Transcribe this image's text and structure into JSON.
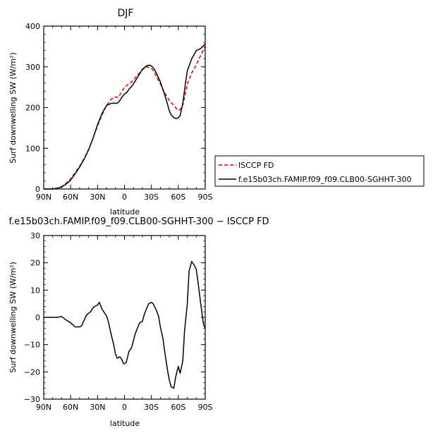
{
  "chart_data": [
    {
      "type": "line",
      "title": "DJF",
      "xlabel": "latitude",
      "ylabel": "Surf downwelling SW (W/m²)",
      "xlim": [
        -90,
        90
      ],
      "ylim": [
        0,
        400
      ],
      "x_ticks": [
        -90,
        -60,
        -30,
        0,
        30,
        60,
        90
      ],
      "x_tick_labels": [
        "90N",
        "60N",
        "30N",
        "0",
        "30S",
        "60S",
        "90S"
      ],
      "y_ticks": [
        0,
        100,
        200,
        300,
        400
      ],
      "y_tick_labels": [
        "0",
        "100",
        "200",
        "300",
        "400"
      ],
      "legend_position": "right",
      "series": [
        {
          "name": "ISCCP FD",
          "color": "#dd0000",
          "dash": "dashed",
          "x": [
            -90,
            -80,
            -75,
            -70,
            -65,
            -60,
            -55,
            -50,
            -45,
            -40,
            -35,
            -30,
            -25,
            -20,
            -15,
            -12,
            -10,
            -7,
            -5,
            -2,
            0,
            3,
            5,
            8,
            10,
            15,
            20,
            25,
            30,
            33,
            35,
            40,
            45,
            50,
            55,
            58,
            60,
            62,
            65,
            68,
            70,
            75,
            80,
            85,
            90
          ],
          "values": [
            0,
            0,
            2,
            6,
            14,
            25,
            40,
            56,
            75,
            97,
            125,
            155,
            182,
            205,
            220,
            225,
            226,
            225,
            232,
            243,
            250,
            255,
            258,
            263,
            268,
            281,
            293,
            300,
            296,
            288,
            278,
            258,
            235,
            217,
            205,
            197,
            193,
            195,
            206,
            235,
            258,
            285,
            305,
            328,
            352
          ]
        },
        {
          "name": "f.e15b03ch.FAMIP.f09_f09.CLB00-SGHHT-300",
          "color": "#000000",
          "dash": "solid",
          "x": [
            -90,
            -80,
            -75,
            -70,
            -65,
            -60,
            -55,
            -50,
            -45,
            -40,
            -35,
            -30,
            -25,
            -20,
            -15,
            -12,
            -10,
            -7,
            -5,
            -2,
            0,
            3,
            5,
            8,
            10,
            15,
            20,
            25,
            28,
            30,
            33,
            35,
            40,
            45,
            48,
            50,
            52,
            55,
            58,
            60,
            62,
            65,
            68,
            70,
            75,
            80,
            85,
            90
          ],
          "values": [
            0,
            0,
            2,
            5,
            12,
            22,
            37,
            54,
            73,
            96,
            125,
            158,
            186,
            205,
            210,
            211,
            210,
            212,
            218,
            228,
            233,
            238,
            245,
            252,
            258,
            276,
            294,
            303,
            304,
            302,
            295,
            287,
            263,
            230,
            208,
            192,
            182,
            175,
            173,
            175,
            180,
            210,
            260,
            290,
            320,
            340,
            345,
            356
          ]
        }
      ]
    },
    {
      "type": "line",
      "title": "f.e15b03ch.FAMIP.f09_f09.CLB00-SGHHT-300 − ISCCP FD",
      "xlabel": "latitude",
      "ylabel": "Surf downwelling SW (W/m²)",
      "xlim": [
        -90,
        90
      ],
      "ylim": [
        -30,
        30
      ],
      "x_ticks": [
        -90,
        -60,
        -30,
        0,
        30,
        60,
        90
      ],
      "x_tick_labels": [
        "90N",
        "60N",
        "30N",
        "0",
        "30S",
        "60S",
        "90S"
      ],
      "y_ticks": [
        -30,
        -20,
        -10,
        0,
        10,
        20,
        30
      ],
      "y_tick_labels": [
        "−30",
        "−20",
        "−10",
        "0",
        "10",
        "20",
        "30"
      ],
      "series": [
        {
          "color": "#000000",
          "dash": "solid",
          "x": [
            -90,
            -80,
            -75,
            -70,
            -65,
            -60,
            -55,
            -52,
            -50,
            -48,
            -45,
            -42,
            -38,
            -35,
            -33,
            -30,
            -28,
            -25,
            -22,
            -20,
            -18,
            -15,
            -12,
            -10,
            -8,
            -5,
            -3,
            -1,
            0,
            2,
            5,
            8,
            10,
            12,
            15,
            17,
            20,
            22,
            25,
            27,
            30,
            32,
            35,
            38,
            40,
            43,
            45,
            48,
            50,
            52,
            55,
            57,
            60,
            62,
            65,
            67,
            70,
            72,
            75,
            78,
            80,
            82,
            85,
            88,
            90
          ],
          "values": [
            0,
            0,
            0,
            0.3,
            -1,
            -2,
            -3.5,
            -3.5,
            -3.5,
            -3.2,
            -1,
            1,
            2,
            3.5,
            4,
            4.5,
            5.5,
            3,
            1.5,
            0.5,
            -1.5,
            -6,
            -10,
            -13.5,
            -15,
            -14.5,
            -15.5,
            -17,
            -17,
            -16.5,
            -12.5,
            -11,
            -8.5,
            -6,
            -3.5,
            -2,
            -1.5,
            1,
            3.5,
            5,
            5.5,
            5,
            3,
            0.5,
            -3.5,
            -8,
            -13,
            -19.5,
            -23,
            -25.5,
            -26,
            -22,
            -18,
            -20.5,
            -16,
            -5,
            5,
            17,
            20.5,
            19,
            17.5,
            13,
            5,
            -2.5,
            -4
          ]
        }
      ]
    }
  ]
}
